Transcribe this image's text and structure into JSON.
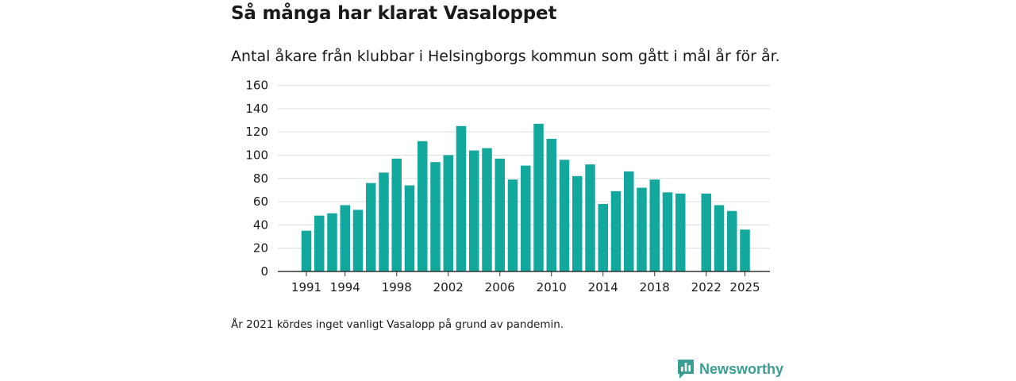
{
  "title": "Så många har klarat Vasaloppet",
  "subtitle": "Antal åkare från klubbar i Helsingborgs kommun som gått i mål år för år.",
  "footnote": "År 2021 kördes inget vanligt Vasalopp på grund av pandemin.",
  "brand": {
    "name": "Newsworthy",
    "icon": "newsworthy-logo-icon",
    "color": "#3a9e92"
  },
  "colors": {
    "bar": "#13a89e",
    "grid": "#dddddd",
    "axis": "#333333"
  },
  "chart_data": {
    "type": "bar",
    "title": "Så många har klarat Vasaloppet",
    "xlabel": "",
    "ylabel": "",
    "ylim": [
      0,
      160
    ],
    "yticks": [
      0,
      20,
      40,
      60,
      80,
      100,
      120,
      140,
      160
    ],
    "xtick_labels": [
      "1991",
      "1994",
      "1998",
      "2002",
      "2006",
      "2010",
      "2014",
      "2018",
      "2022",
      "2025"
    ],
    "categories": [
      "1991",
      "1992",
      "1993",
      "1994",
      "1995",
      "1996",
      "1997",
      "1998",
      "1999",
      "2000",
      "2001",
      "2002",
      "2003",
      "2004",
      "2005",
      "2006",
      "2007",
      "2008",
      "2009",
      "2010",
      "2011",
      "2012",
      "2013",
      "2014",
      "2015",
      "2016",
      "2017",
      "2018",
      "2019",
      "2020",
      "2021",
      "2022",
      "2023",
      "2024",
      "2025"
    ],
    "values": [
      35,
      48,
      50,
      57,
      53,
      76,
      85,
      97,
      74,
      112,
      94,
      100,
      125,
      104,
      106,
      97,
      79,
      91,
      127,
      114,
      96,
      82,
      92,
      58,
      69,
      86,
      72,
      79,
      68,
      67,
      null,
      67,
      57,
      52,
      36
    ],
    "grid": true,
    "legend": "none"
  }
}
